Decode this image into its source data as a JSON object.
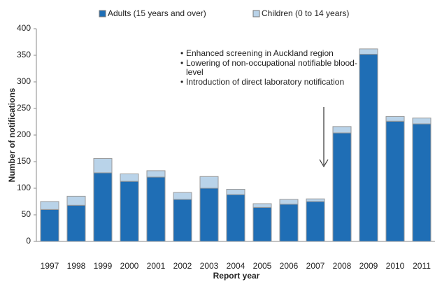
{
  "chart_data": {
    "type": "stacked_bar",
    "y_label": "Number of notifications",
    "x_label": "Report year",
    "categories": [
      "1997",
      "1998",
      "1999",
      "2000",
      "2001",
      "2002",
      "2003",
      "2004",
      "2005",
      "2006",
      "2007",
      "2008",
      "2009",
      "2010",
      "2011"
    ],
    "series": [
      {
        "name": "Adults (15 years and over)",
        "color": "#1f6eb5",
        "values": [
          60,
          68,
          129,
          113,
          121,
          79,
          100,
          88,
          64,
          70,
          75,
          204,
          352,
          226,
          221
        ]
      },
      {
        "name": "Children (0 to 14 years)",
        "color": "#b9d3e9",
        "values": [
          15,
          17,
          27,
          14,
          12,
          13,
          22,
          10,
          7,
          9,
          5,
          12,
          10,
          9,
          11
        ]
      }
    ],
    "ylim": [
      0,
      400
    ],
    "yticks": [
      0,
      50,
      100,
      150,
      200,
      250,
      300,
      350,
      400
    ],
    "annotations": [
      "Enhanced screening in Auckland region",
      "Lowering of non-occupational notifiable blood-level",
      "Introduction of direct laboratory notification"
    ]
  }
}
